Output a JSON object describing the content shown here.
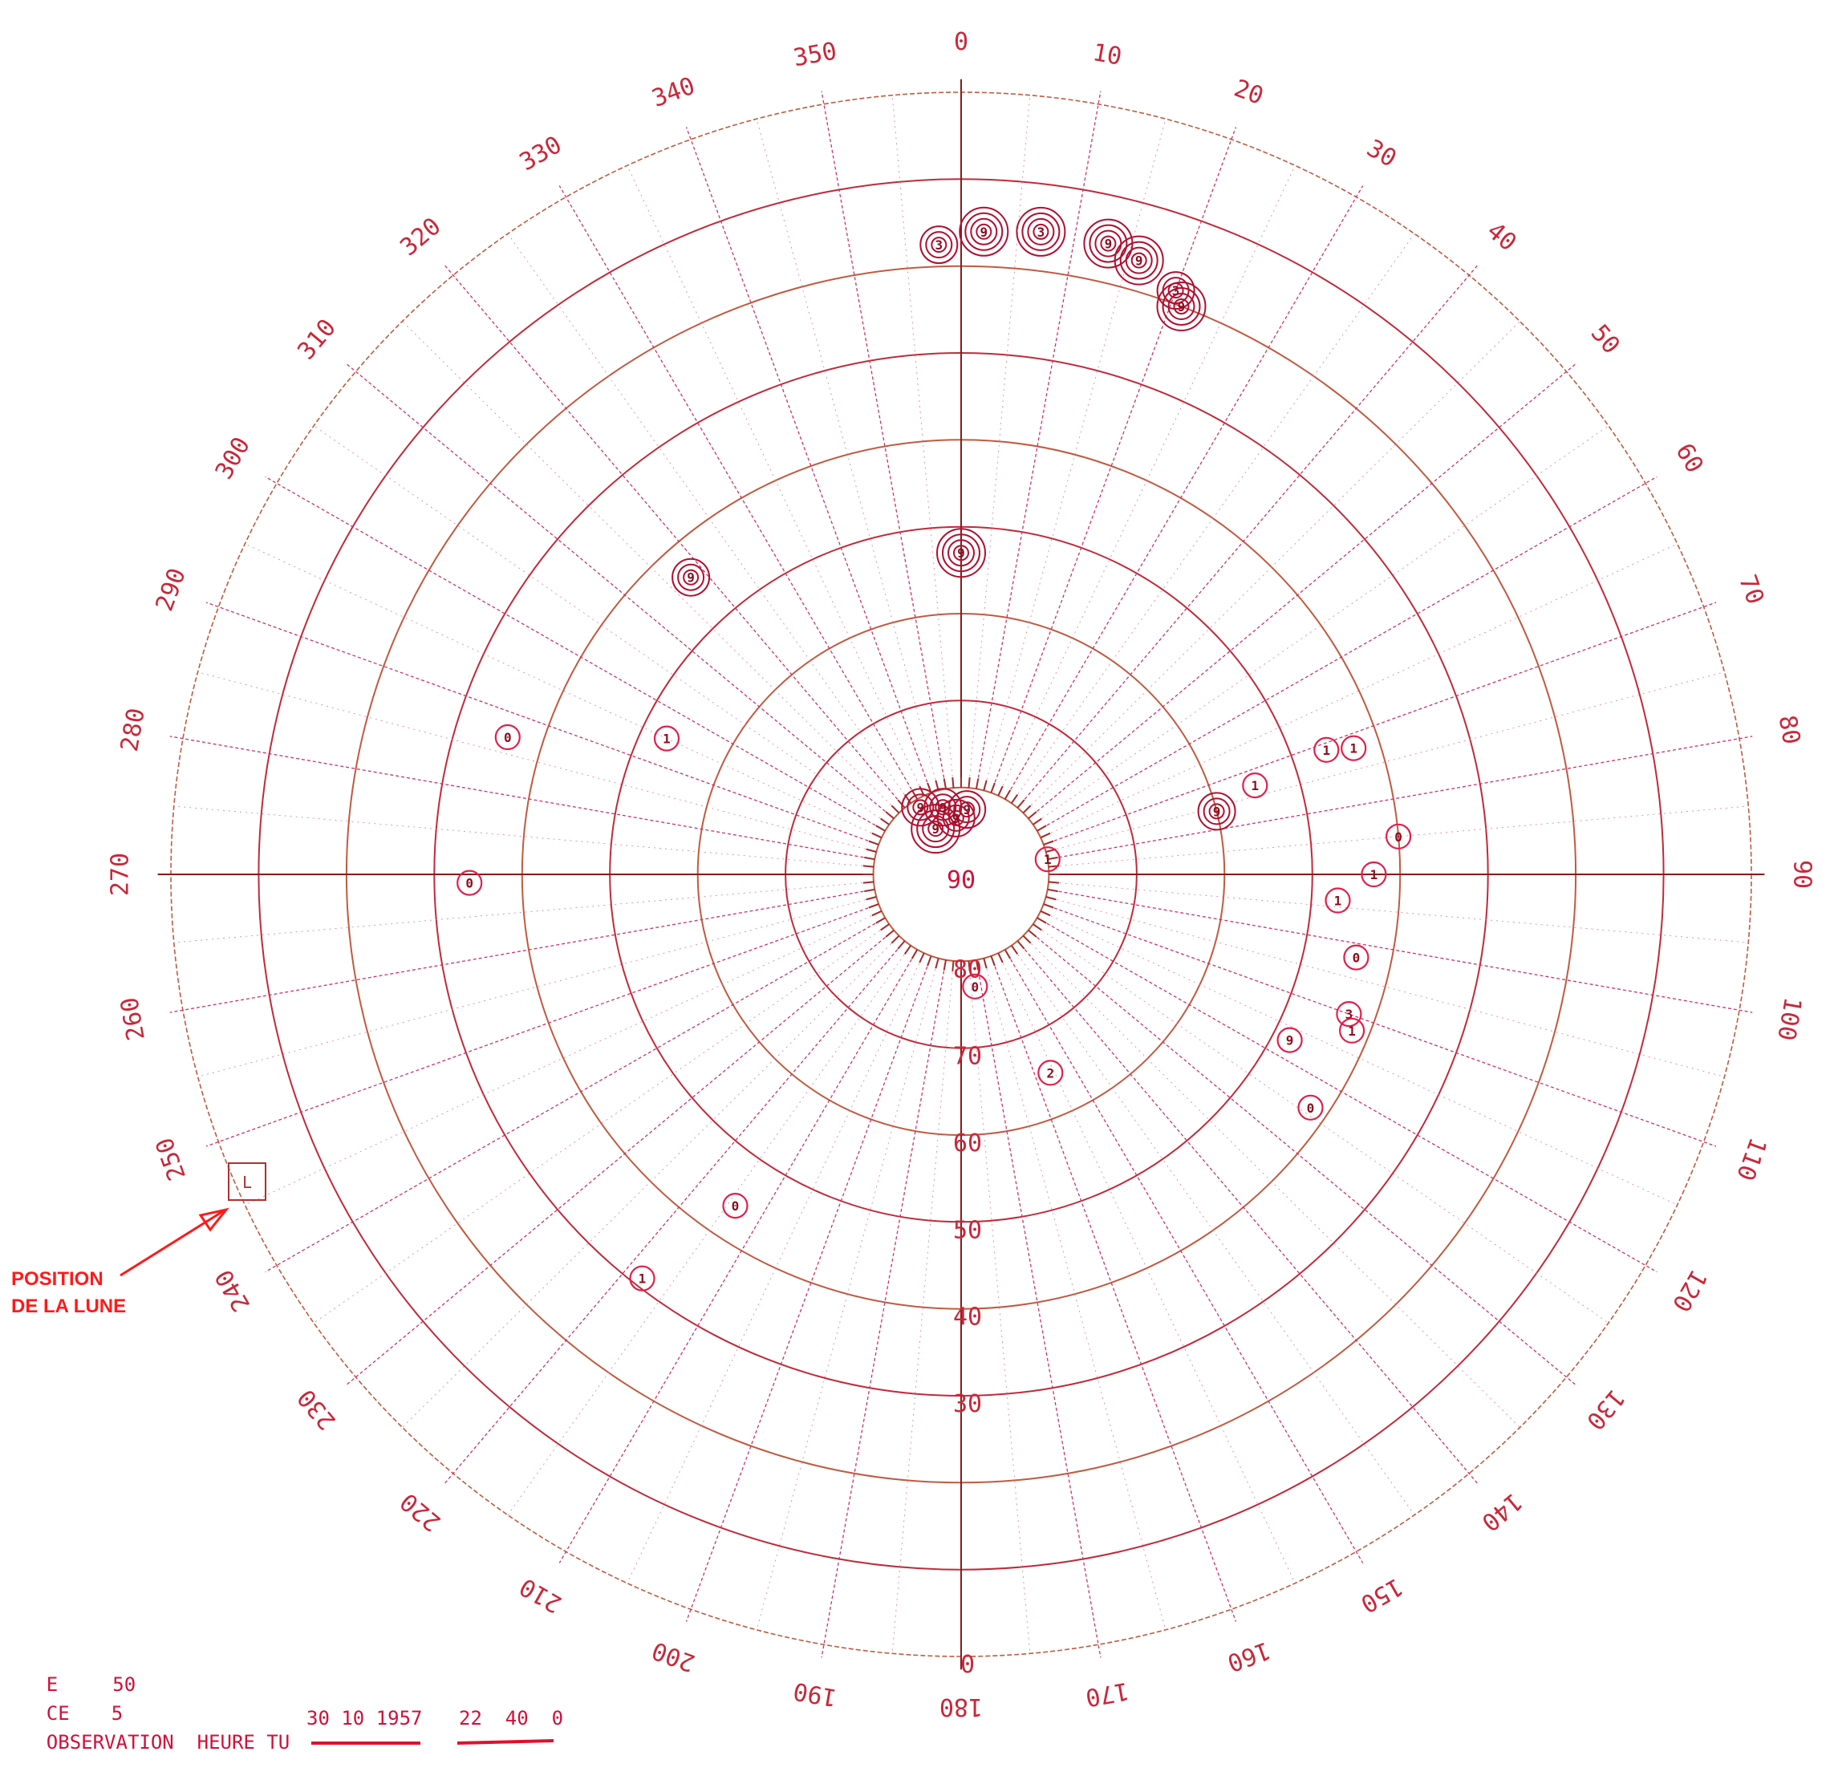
{
  "diagram": {
    "center_label": "90",
    "azimuth_labels": [
      "0",
      "10",
      "20",
      "30",
      "40",
      "50",
      "60",
      "70",
      "80",
      "90",
      "100",
      "110",
      "120",
      "130",
      "140",
      "150",
      "160",
      "170",
      "180",
      "190",
      "200",
      "210",
      "220",
      "230",
      "240",
      "250",
      "260",
      "270",
      "280",
      "290",
      "300",
      "310",
      "320",
      "330",
      "340",
      "350"
    ],
    "elevation_labels": [
      "80",
      "70",
      "60",
      "50",
      "40",
      "30",
      "0"
    ],
    "moon_marker": "L",
    "note_line1": "POSITION",
    "note_line2": "DE LA LUNE"
  },
  "footer": {
    "line1_label": "E",
    "line1_value": "50",
    "line2_label": "CE",
    "line2_value": "5",
    "line3_label": "OBSERVATION  HEURE TU",
    "date": "30 10 1957",
    "time": "22  40  0"
  },
  "markers": [
    {
      "az": 358,
      "el": 17.5,
      "rings": 3,
      "label": "3"
    },
    {
      "az": 2,
      "el": 16,
      "rings": 4,
      "label": "9"
    },
    {
      "az": 7,
      "el": 15.5,
      "rings": 4,
      "label": "3"
    },
    {
      "az": 13,
      "el": 15.5,
      "rings": 4,
      "label": "9"
    },
    {
      "az": 16,
      "el": 16.5,
      "rings": 4,
      "label": "9"
    },
    {
      "az": 20,
      "el": 18.5,
      "rings": 3,
      "label": "3"
    },
    {
      "az": 21,
      "el": 20,
      "rings": 4,
      "label": "9"
    },
    {
      "az": 0,
      "el": 53,
      "rings": 4,
      "label": "9"
    },
    {
      "az": 5,
      "el": 82.5,
      "rings": 3,
      "label": "9"
    },
    {
      "az": 331,
      "el": 84,
      "rings": 4,
      "label": "9"
    },
    {
      "az": 345,
      "el": 82,
      "rings": 3,
      "label": "9"
    },
    {
      "az": 355,
      "el": 83.5,
      "rings": 3,
      "label": "9"
    },
    {
      "az": 329,
      "el": 81,
      "rings": 3,
      "label": "9"
    },
    {
      "az": 76,
      "el": 60,
      "rings": 3,
      "label": "9"
    },
    {
      "az": 73,
      "el": 55,
      "rings": 1,
      "label": "1"
    },
    {
      "az": 72,
      "el": 43,
      "rings": 1,
      "label": "1"
    },
    {
      "az": 71,
      "el": 46,
      "rings": 1,
      "label": "1"
    },
    {
      "az": 80,
      "el": 80,
      "rings": 1,
      "label": "1"
    },
    {
      "az": 85,
      "el": 40,
      "rings": 1,
      "label": "0"
    },
    {
      "az": 90,
      "el": 43,
      "rings": 1,
      "label": "1"
    },
    {
      "az": 94,
      "el": 47,
      "rings": 1,
      "label": "1"
    },
    {
      "az": 102,
      "el": 44,
      "rings": 1,
      "label": "0"
    },
    {
      "az": 117,
      "el": 48,
      "rings": 1,
      "label": "9"
    },
    {
      "az": 110,
      "el": 43,
      "rings": 1,
      "label": "3"
    },
    {
      "az": 112,
      "el": 42,
      "rings": 1,
      "label": "1"
    },
    {
      "az": 124,
      "el": 42,
      "rings": 1,
      "label": "0"
    },
    {
      "az": 173,
      "el": 77,
      "rings": 1,
      "label": "0"
    },
    {
      "az": 156,
      "el": 65,
      "rings": 1,
      "label": "2"
    },
    {
      "az": 214,
      "el": 44,
      "rings": 1,
      "label": "0"
    },
    {
      "az": 218,
      "el": 31,
      "rings": 1,
      "label": "1"
    },
    {
      "az": 269,
      "el": 34,
      "rings": 1,
      "label": "0"
    },
    {
      "az": 287,
      "el": 36,
      "rings": 1,
      "label": "0"
    },
    {
      "az": 295,
      "el": 53,
      "rings": 1,
      "label": "1"
    },
    {
      "az": 318,
      "el": 44,
      "rings": 3,
      "label": "9"
    }
  ]
}
